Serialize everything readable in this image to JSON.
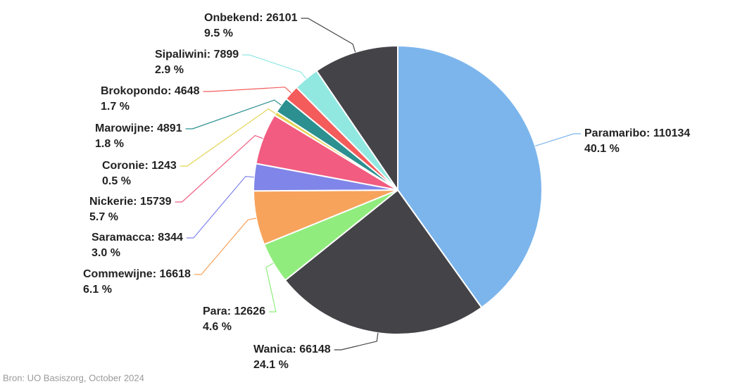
{
  "chart_data": {
    "type": "pie",
    "value_labels": [
      "Paramaribo: 110134",
      "Wanica: 66148",
      "Para: 12626",
      "Commewijne: 16618",
      "Saramacca: 8344",
      "Nickerie: 15739",
      "Coronie: 1243",
      "Marowijne: 4891",
      "Brokopondo: 4648",
      "Sipaliwini: 7899",
      "Onbekend: 26101"
    ],
    "values": [
      110134,
      66148,
      12626,
      16618,
      8344,
      15739,
      1243,
      4891,
      4648,
      7899,
      26101
    ],
    "percent_labels": [
      "40.1 %",
      "24.1 %",
      "4.6 %",
      "6.1 %",
      "3.0 %",
      "5.7 %",
      "0.5 %",
      "1.8 %",
      "1.7 %",
      "2.9 %",
      "9.5 %"
    ],
    "colors": [
      "#7cb5ec",
      "#434348",
      "#90ed7d",
      "#f7a35c",
      "#8085e9",
      "#f15c80",
      "#e4d354",
      "#2b908f",
      "#f45b5b",
      "#91e8e1",
      "#434348"
    ],
    "source": "Bron: UO Basiszorg, October 2024"
  }
}
